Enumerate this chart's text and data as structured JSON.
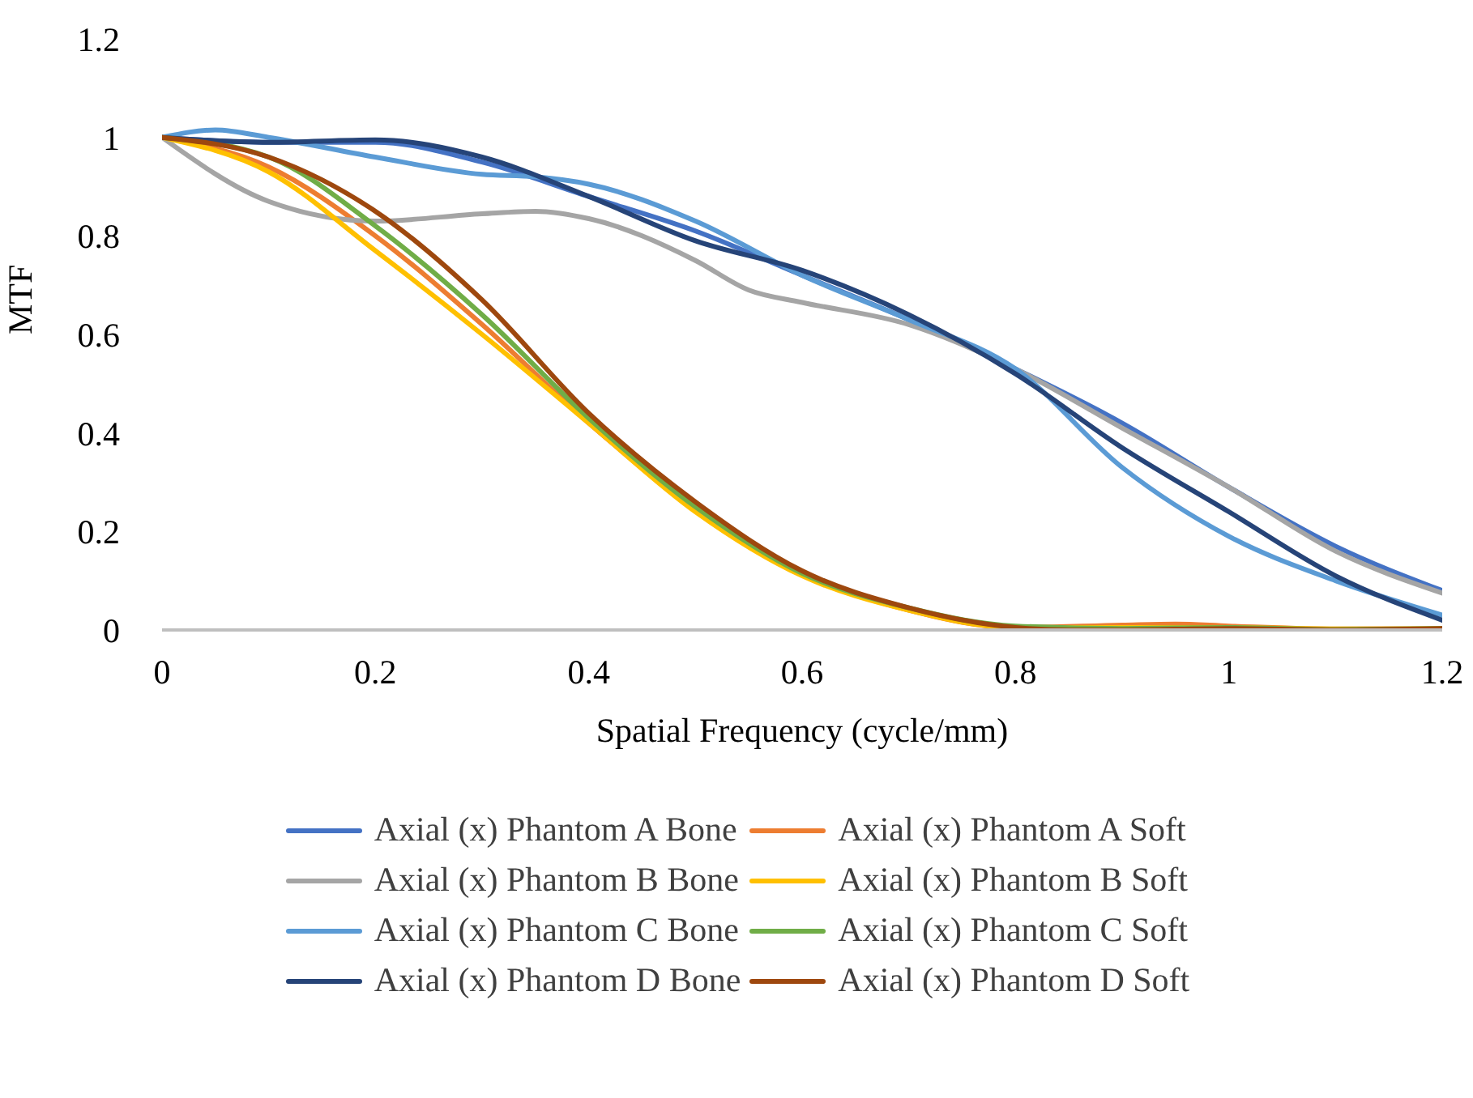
{
  "chart_data": {
    "type": "line",
    "xlabel": "Spatial Frequency (cycle/mm)",
    "ylabel": "MTF",
    "xlim": [
      0,
      1.2
    ],
    "xticks": [
      0,
      0.2,
      0.4,
      0.6,
      0.8,
      1,
      1.2
    ],
    "ylim": [
      0,
      1.2
    ],
    "yticks": [
      0,
      0.2,
      0.4,
      0.6,
      0.8,
      1,
      1.2
    ],
    "grid": false,
    "legend": "bottom",
    "marker": "none",
    "line_style": "solid",
    "series": [
      {
        "name": "Axial (x) Phantom A Bone",
        "color": "#4472c4",
        "x": [
          0,
          0.1,
          0.2,
          0.3,
          0.4,
          0.5,
          0.6,
          0.7,
          0.8,
          0.9,
          1,
          1.1,
          1.2
        ],
        "values": [
          1,
          0.99,
          0.99,
          0.95,
          0.88,
          0.81,
          0.72,
          0.63,
          0.53,
          0.42,
          0.29,
          0.17,
          0.08
        ]
      },
      {
        "name": "Axial (x) Phantom A Soft",
        "color": "#ed7d31",
        "x": [
          0,
          0.1,
          0.2,
          0.3,
          0.4,
          0.5,
          0.6,
          0.7,
          0.8,
          0.9,
          0.95,
          1,
          1.1,
          1.2
        ],
        "values": [
          1,
          0.94,
          0.8,
          0.62,
          0.42,
          0.245,
          0.115,
          0.04,
          0.005,
          0.01,
          0.012,
          0.008,
          0.002,
          0.003
        ]
      },
      {
        "name": "Axial (x) Phantom B Bone",
        "color": "#a5a5a5",
        "x": [
          0,
          0.1,
          0.2,
          0.3,
          0.35,
          0.4,
          0.5,
          0.55,
          0.6,
          0.7,
          0.8,
          0.9,
          1,
          1.1,
          1.2
        ],
        "values": [
          1,
          0.87,
          0.83,
          0.845,
          0.85,
          0.835,
          0.75,
          0.69,
          0.665,
          0.62,
          0.53,
          0.41,
          0.29,
          0.16,
          0.075
        ]
      },
      {
        "name": "Axial (x) Phantom B Soft",
        "color": "#ffc000",
        "x": [
          0,
          0.1,
          0.2,
          0.3,
          0.4,
          0.5,
          0.6,
          0.7,
          0.8,
          0.9,
          1,
          1.1,
          1.2
        ],
        "values": [
          1,
          0.93,
          0.77,
          0.6,
          0.42,
          0.24,
          0.11,
          0.04,
          0.005,
          0.005,
          0.005,
          0.002,
          0.002
        ]
      },
      {
        "name": "Axial (x) Phantom C Bone",
        "color": "#5b9bd5",
        "x": [
          0,
          0.05,
          0.1,
          0.2,
          0.3,
          0.35,
          0.4,
          0.5,
          0.6,
          0.7,
          0.8,
          0.9,
          1,
          1.1,
          1.2
        ],
        "values": [
          1,
          1.015,
          1,
          0.96,
          0.925,
          0.92,
          0.905,
          0.83,
          0.72,
          0.63,
          0.53,
          0.33,
          0.19,
          0.1,
          0.03
        ]
      },
      {
        "name": "Axial (x) Phantom C Soft",
        "color": "#70ad47",
        "x": [
          0,
          0.1,
          0.2,
          0.3,
          0.4,
          0.5,
          0.6,
          0.7,
          0.8,
          0.9,
          1,
          1.1,
          1.2
        ],
        "values": [
          1,
          0.96,
          0.82,
          0.64,
          0.43,
          0.25,
          0.115,
          0.045,
          0.008,
          0.003,
          0.005,
          0.001,
          0.003
        ]
      },
      {
        "name": "Axial (x) Phantom D Bone",
        "color": "#264478",
        "x": [
          0,
          0.1,
          0.2,
          0.3,
          0.4,
          0.5,
          0.6,
          0.7,
          0.8,
          0.9,
          1,
          1.1,
          1.2
        ],
        "values": [
          1,
          0.99,
          0.995,
          0.96,
          0.88,
          0.79,
          0.73,
          0.64,
          0.52,
          0.37,
          0.24,
          0.11,
          0.02
        ]
      },
      {
        "name": "Axial (x) Phantom D Soft",
        "color": "#9e480e",
        "x": [
          0,
          0.1,
          0.2,
          0.3,
          0.4,
          0.5,
          0.6,
          0.7,
          0.8,
          0.85,
          0.9,
          1,
          1.1,
          1.2
        ],
        "values": [
          1,
          0.96,
          0.85,
          0.67,
          0.44,
          0.26,
          0.12,
          0.045,
          0.005,
          0,
          0,
          0.003,
          0,
          0.003
        ]
      }
    ]
  }
}
